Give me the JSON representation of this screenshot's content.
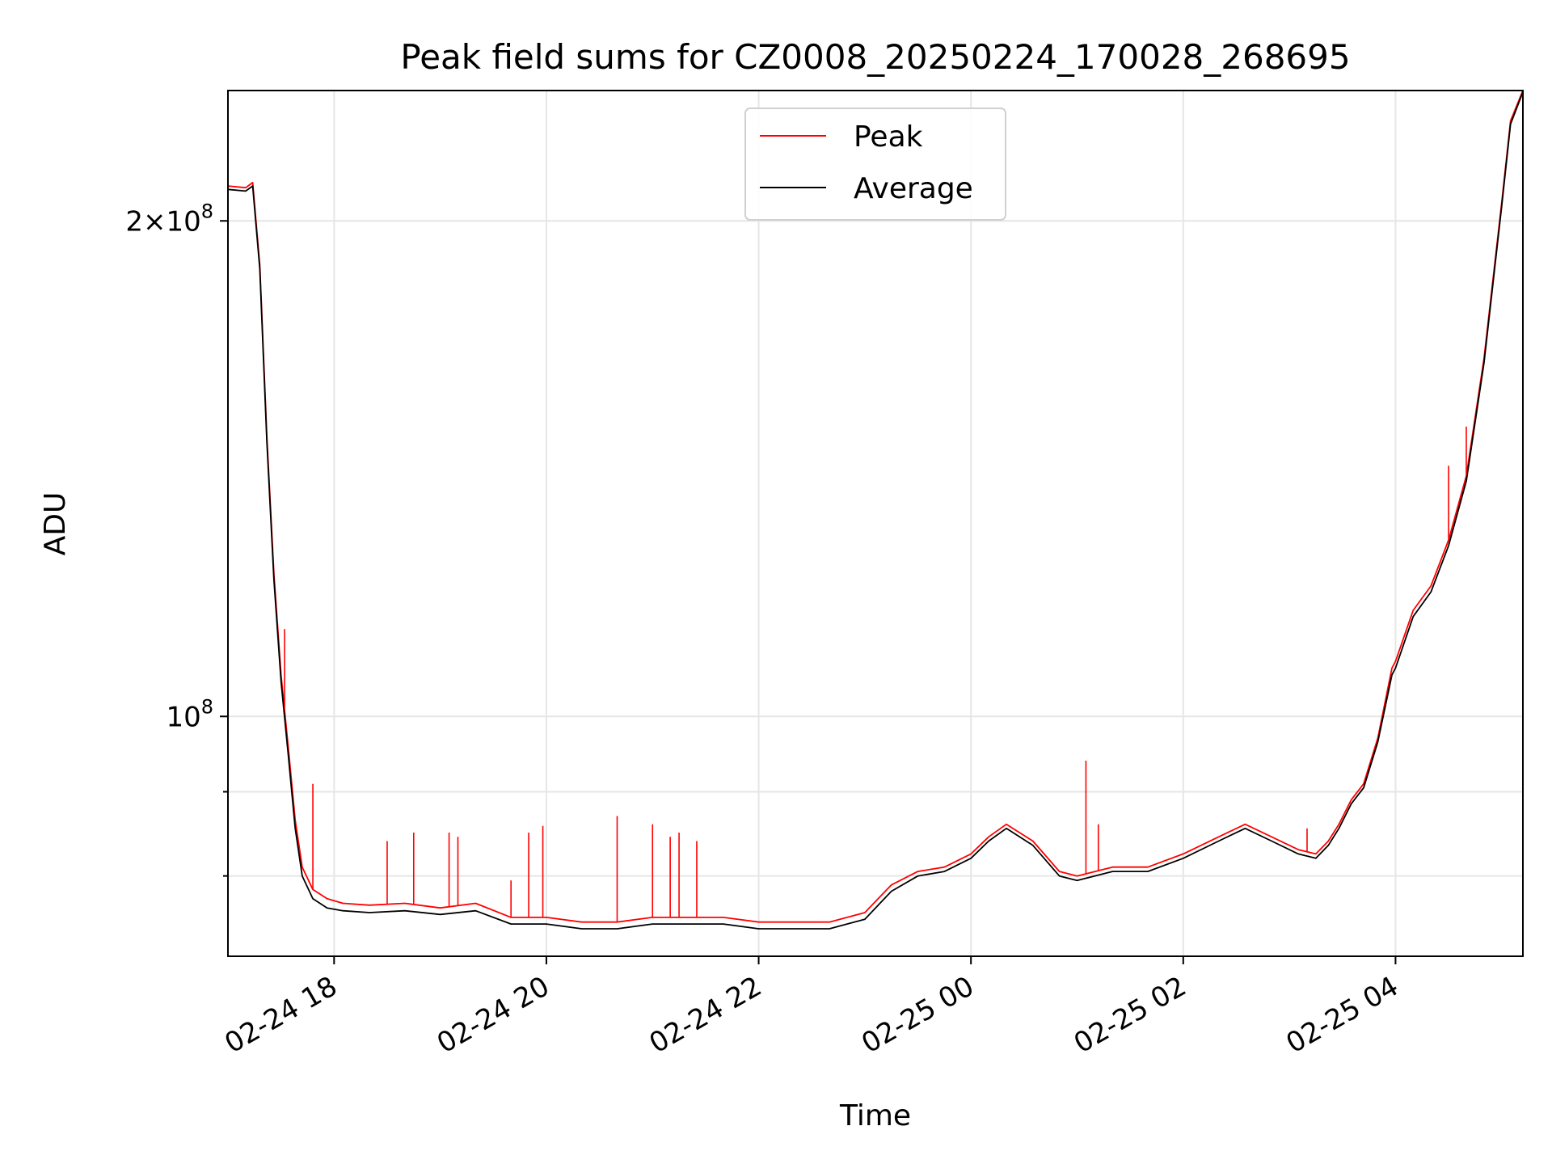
{
  "chart_data": {
    "type": "line",
    "title": "Peak field sums for CZ0008_20250224_170028_268695",
    "xlabel": "Time",
    "ylabel": "ADU",
    "y_scale": "log",
    "grid": true,
    "legend_position": "top-center",
    "x_range": [
      "2025-02-24 17:00",
      "2025-02-25 05:12"
    ],
    "y_range": [
      71500000,
      240000000
    ],
    "x_ticks": [
      {
        "t": "2025-02-24 18:00",
        "label": "02-24 18"
      },
      {
        "t": "2025-02-24 20:00",
        "label": "02-24 20"
      },
      {
        "t": "2025-02-24 22:00",
        "label": "02-24 22"
      },
      {
        "t": "2025-02-25 00:00",
        "label": "02-25 00"
      },
      {
        "t": "2025-02-25 02:00",
        "label": "02-25 02"
      },
      {
        "t": "2025-02-25 04:00",
        "label": "02-25 04"
      }
    ],
    "y_major_ticks": [
      {
        "value": 100000000,
        "base": "10",
        "exp": "8",
        "coef": ""
      },
      {
        "value": 200000000,
        "base": "10",
        "exp": "8",
        "coef": "2×"
      }
    ],
    "y_minor_ticks": [
      80000000,
      90000000
    ],
    "series": [
      {
        "name": "Peak",
        "color": "#ff0000",
        "x": [
          "2025-02-24 17:00",
          "2025-02-24 17:10",
          "2025-02-24 17:14",
          "2025-02-24 17:18",
          "2025-02-24 17:22",
          "2025-02-24 17:26",
          "2025-02-24 17:30",
          "2025-02-24 17:34",
          "2025-02-24 17:38",
          "2025-02-24 17:42",
          "2025-02-24 17:48",
          "2025-02-24 17:56",
          "2025-02-24 18:05",
          "2025-02-24 18:20",
          "2025-02-24 18:40",
          "2025-02-24 19:00",
          "2025-02-24 19:20",
          "2025-02-24 19:40",
          "2025-02-24 20:00",
          "2025-02-24 20:20",
          "2025-02-24 20:40",
          "2025-02-24 21:00",
          "2025-02-24 21:20",
          "2025-02-24 21:40",
          "2025-02-24 22:00",
          "2025-02-24 22:20",
          "2025-02-24 22:40",
          "2025-02-24 23:00",
          "2025-02-24 23:15",
          "2025-02-24 23:30",
          "2025-02-24 23:45",
          "2025-02-25 00:00",
          "2025-02-25 00:10",
          "2025-02-25 00:20",
          "2025-02-25 00:35",
          "2025-02-25 00:50",
          "2025-02-25 01:00",
          "2025-02-25 01:20",
          "2025-02-25 01:40",
          "2025-02-25 02:00",
          "2025-02-25 02:20",
          "2025-02-25 02:35",
          "2025-02-25 02:50",
          "2025-02-25 03:05",
          "2025-02-25 03:15",
          "2025-02-25 03:22",
          "2025-02-25 03:28",
          "2025-02-25 03:35",
          "2025-02-25 03:42",
          "2025-02-25 03:50",
          "2025-02-25 03:58",
          "2025-02-25 04:00",
          "2025-02-25 04:10",
          "2025-02-25 04:20",
          "2025-02-25 04:30",
          "2025-02-25 04:40",
          "2025-02-25 04:50",
          "2025-02-25 05:00",
          "2025-02-25 05:05",
          "2025-02-25 05:12"
        ],
        "values": [
          210000000,
          209500000,
          211000000,
          188000000,
          148000000,
          122000000,
          106000000,
          96000000,
          86500000,
          81000000,
          78500000,
          77500000,
          77000000,
          76800000,
          77000000,
          76500000,
          77000000,
          75500000,
          75500000,
          75000000,
          75000000,
          75500000,
          75500000,
          75500000,
          75000000,
          75000000,
          75000000,
          76000000,
          79000000,
          80500000,
          81000000,
          82500000,
          84500000,
          86000000,
          84000000,
          80500000,
          80000000,
          81000000,
          81000000,
          82500000,
          84500000,
          86000000,
          84500000,
          83000000,
          82500000,
          84000000,
          86000000,
          89000000,
          91000000,
          97000000,
          107000000,
          108000000,
          116000000,
          120000000,
          128000000,
          140000000,
          165000000,
          205000000,
          230000000,
          240000000
        ]
      },
      {
        "name": "Average",
        "color": "#000000",
        "x": [
          "2025-02-24 17:00",
          "2025-02-24 17:10",
          "2025-02-24 17:14",
          "2025-02-24 17:18",
          "2025-02-24 17:22",
          "2025-02-24 17:26",
          "2025-02-24 17:30",
          "2025-02-24 17:34",
          "2025-02-24 17:38",
          "2025-02-24 17:42",
          "2025-02-24 17:48",
          "2025-02-24 17:56",
          "2025-02-24 18:05",
          "2025-02-24 18:20",
          "2025-02-24 18:40",
          "2025-02-24 19:00",
          "2025-02-24 19:20",
          "2025-02-24 19:40",
          "2025-02-24 20:00",
          "2025-02-24 20:20",
          "2025-02-24 20:40",
          "2025-02-24 21:00",
          "2025-02-24 21:20",
          "2025-02-24 21:40",
          "2025-02-24 22:00",
          "2025-02-24 22:20",
          "2025-02-24 22:40",
          "2025-02-24 23:00",
          "2025-02-24 23:15",
          "2025-02-24 23:30",
          "2025-02-24 23:45",
          "2025-02-25 00:00",
          "2025-02-25 00:10",
          "2025-02-25 00:20",
          "2025-02-25 00:35",
          "2025-02-25 00:50",
          "2025-02-25 01:00",
          "2025-02-25 01:20",
          "2025-02-25 01:40",
          "2025-02-25 02:00",
          "2025-02-25 02:20",
          "2025-02-25 02:35",
          "2025-02-25 02:50",
          "2025-02-25 03:05",
          "2025-02-25 03:15",
          "2025-02-25 03:22",
          "2025-02-25 03:28",
          "2025-02-25 03:35",
          "2025-02-25 03:42",
          "2025-02-25 03:50",
          "2025-02-25 03:58",
          "2025-02-25 04:00",
          "2025-02-25 04:10",
          "2025-02-25 04:20",
          "2025-02-25 04:30",
          "2025-02-25 04:40",
          "2025-02-25 04:50",
          "2025-02-25 05:00",
          "2025-02-25 05:05",
          "2025-02-25 05:12"
        ],
        "values": [
          209000000,
          208500000,
          210000000,
          187000000,
          147000000,
          121000000,
          105000000,
          95000000,
          85500000,
          80000000,
          77500000,
          76500000,
          76200000,
          76000000,
          76200000,
          75800000,
          76200000,
          74800000,
          74800000,
          74300000,
          74300000,
          74800000,
          74800000,
          74800000,
          74300000,
          74300000,
          74300000,
          75300000,
          78300000,
          80000000,
          80500000,
          82000000,
          84000000,
          85500000,
          83500000,
          80000000,
          79500000,
          80500000,
          80500000,
          82000000,
          84000000,
          85500000,
          84000000,
          82500000,
          82000000,
          83500000,
          85500000,
          88500000,
          90500000,
          96500000,
          106000000,
          107000000,
          115000000,
          119000000,
          127000000,
          139000000,
          164000000,
          204000000,
          229000000,
          239500000
        ]
      }
    ],
    "peak_spikes": [
      {
        "t": "2025-02-24 17:32",
        "value": 113000000
      },
      {
        "t": "2025-02-24 17:48",
        "value": 91000000
      },
      {
        "t": "2025-02-24 18:30",
        "value": 84000000
      },
      {
        "t": "2025-02-24 18:45",
        "value": 85000000
      },
      {
        "t": "2025-02-24 19:05",
        "value": 85000000
      },
      {
        "t": "2025-02-24 19:10",
        "value": 84500000
      },
      {
        "t": "2025-02-24 19:40",
        "value": 79500000
      },
      {
        "t": "2025-02-24 19:50",
        "value": 85000000
      },
      {
        "t": "2025-02-24 19:58",
        "value": 85800000
      },
      {
        "t": "2025-02-24 20:40",
        "value": 87000000
      },
      {
        "t": "2025-02-24 21:00",
        "value": 86000000
      },
      {
        "t": "2025-02-24 21:10",
        "value": 84500000
      },
      {
        "t": "2025-02-24 21:15",
        "value": 85000000
      },
      {
        "t": "2025-02-24 21:25",
        "value": 84000000
      },
      {
        "t": "2025-02-25 01:05",
        "value": 94000000
      },
      {
        "t": "2025-02-25 01:12",
        "value": 86000000
      },
      {
        "t": "2025-02-25 03:10",
        "value": 85500000
      },
      {
        "t": "2025-02-25 04:30",
        "value": 142000000
      },
      {
        "t": "2025-02-25 04:40",
        "value": 150000000
      }
    ]
  }
}
